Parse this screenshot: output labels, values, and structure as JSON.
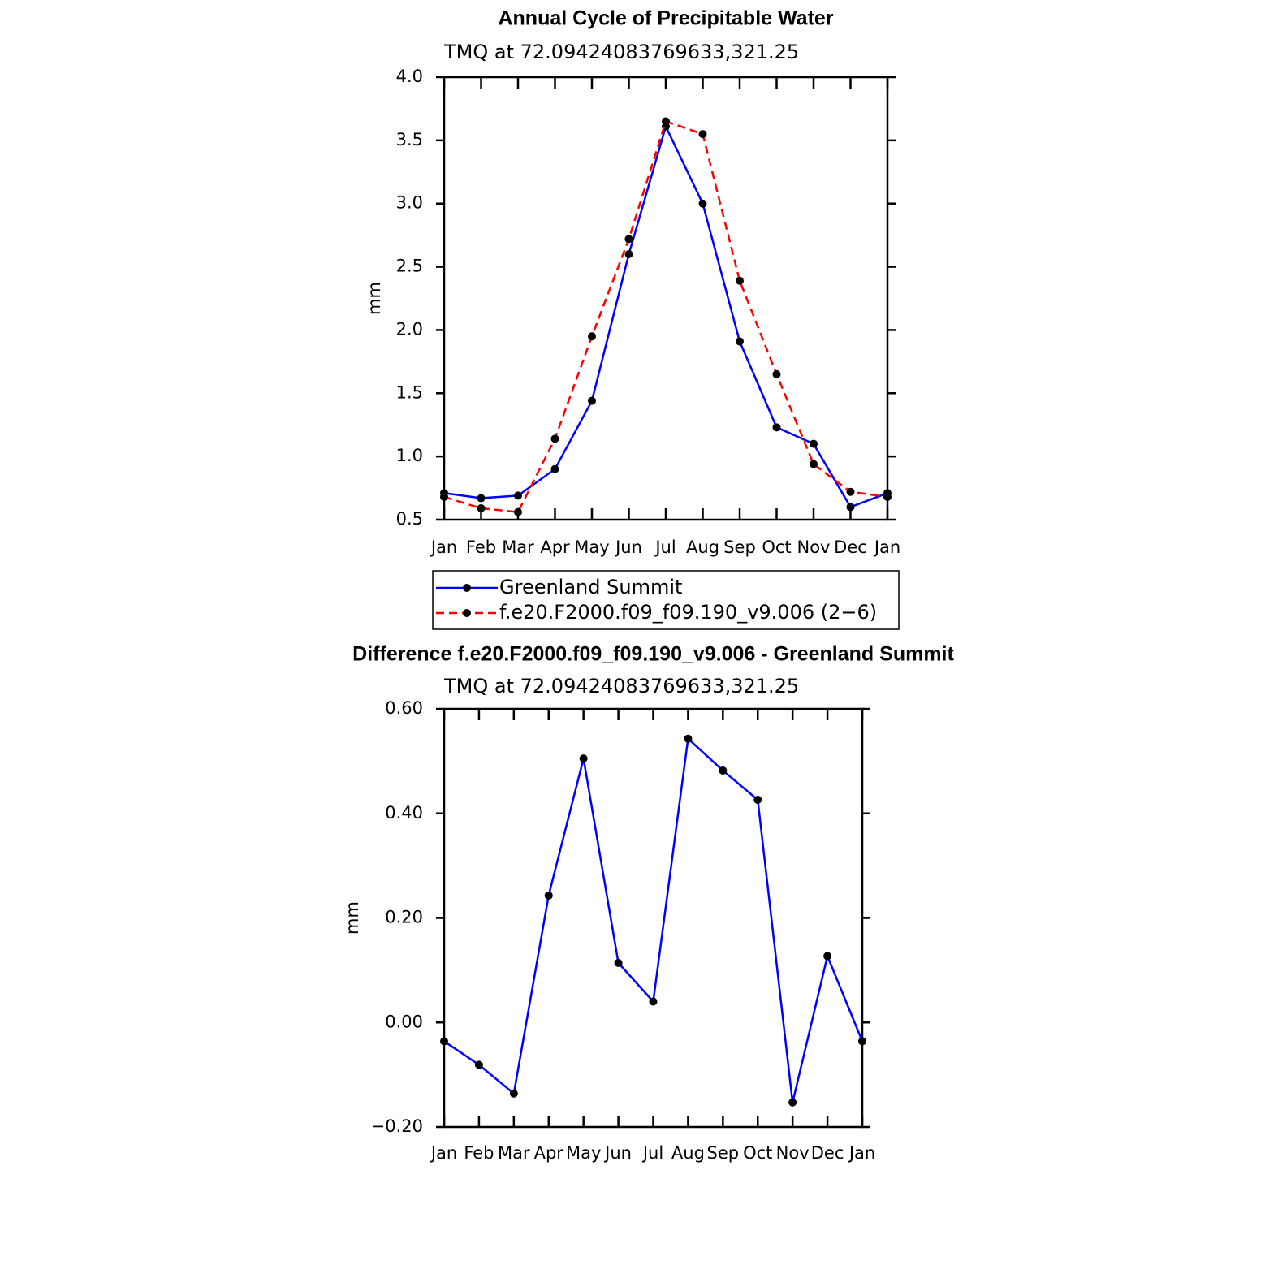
{
  "chart_data": [
    {
      "type": "line",
      "title": "Annual Cycle of Precipitable Water",
      "subtitle": "TMQ at 72.09424083769633,321.25",
      "y_label": "mm",
      "categories": [
        "Jan",
        "Feb",
        "Mar",
        "Apr",
        "May",
        "Jun",
        "Jul",
        "Aug",
        "Sep",
        "Oct",
        "Nov",
        "Dec",
        "Jan"
      ],
      "series": [
        {
          "name": "Greenland Summit",
          "color": "#0000ff",
          "line_style": "solid",
          "values": [
            0.71,
            0.67,
            0.69,
            0.9,
            1.44,
            2.6,
            3.61,
            3.0,
            1.91,
            1.23,
            1.1,
            0.6,
            0.71
          ]
        },
        {
          "name": "f.e20.F2000.f09_f09.190_v9.006 (2−6)",
          "color": "#ff0000",
          "line_style": "dashed",
          "values": [
            0.68,
            0.59,
            0.56,
            1.14,
            1.95,
            2.72,
            3.65,
            3.55,
            2.39,
            1.65,
            0.94,
            0.72,
            0.68
          ]
        }
      ],
      "ylim": [
        0.5,
        4.0
      ],
      "yticks": [
        0.5,
        {
          "value": 1.0,
          "label": "1.0"
        },
        1.5,
        {
          "value": 2.0,
          "label": "2.0"
        },
        2.5,
        {
          "value": 3.0,
          "label": "3.0"
        },
        3.5,
        {
          "value": 4.0,
          "label": "4.0"
        }
      ],
      "legend": "bottom"
    },
    {
      "type": "line",
      "title": "Difference f.e20.F2000.f09_f09.190_v9.006 - Greenland Summit",
      "subtitle": "TMQ at 72.09424083769633,321.25",
      "y_label": "mm",
      "categories": [
        "Jan",
        "Feb",
        "Mar",
        "Apr",
        "May",
        "Jun",
        "Jul",
        "Aug",
        "Sep",
        "Oct",
        "Nov",
        "Dec",
        "Jan"
      ],
      "series": [
        {
          "color": "#0000ff",
          "line_style": "solid",
          "values": [
            -0.036,
            -0.081,
            -0.136,
            0.243,
            0.505,
            0.114,
            0.04,
            0.543,
            0.482,
            0.426,
            -0.153,
            0.127,
            -0.036
          ]
        }
      ],
      "ylim": [
        -0.2,
        0.6
      ],
      "yticks": [
        {
          "value": -0.2,
          "label": "−0.20"
        },
        {
          "value": 0.0,
          "label": "0.00"
        },
        {
          "value": 0.2,
          "label": "0.20"
        },
        {
          "value": 0.4,
          "label": "0.40"
        },
        {
          "value": 0.6,
          "label": "0.60"
        }
      ]
    }
  ]
}
